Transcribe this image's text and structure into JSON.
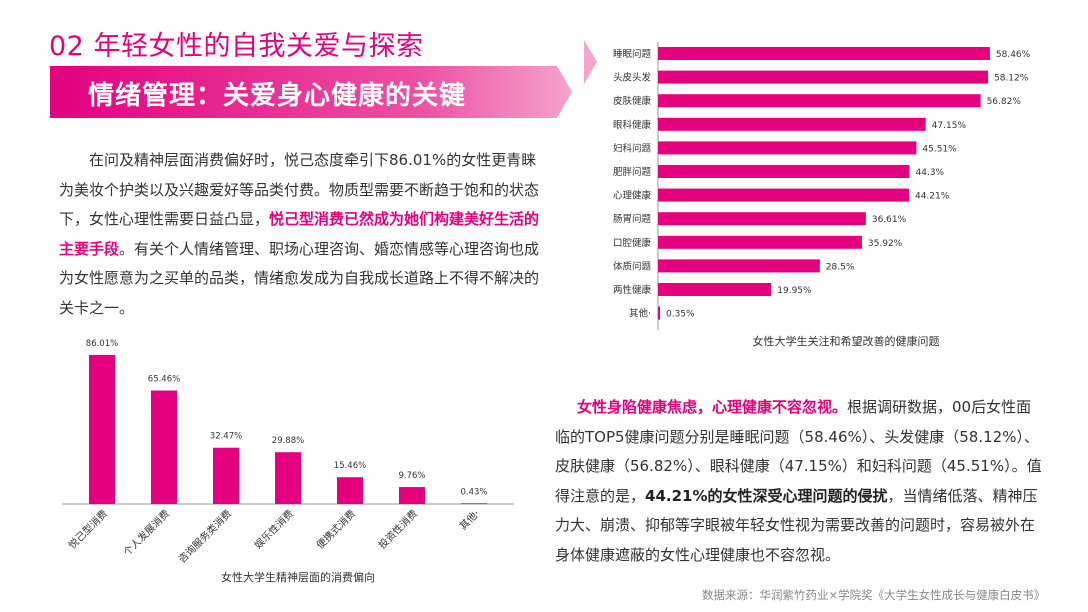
{
  "header": {
    "title": "02 年轻女性的自我关爱与探索",
    "banner": "情绪管理：关爱身心健康的关键"
  },
  "colors": {
    "accent": "#e4007f",
    "banner_light": "#f6a3cd"
  },
  "intro": {
    "p1": "在问及精神层面消费偏好时，悦己态度牵引下86.01%的女性更青睐为美妆个护类以及兴趣爱好等品类付费。物质型需要不断趋于饱和的状态下，女性心理性需要日益凸显，",
    "highlight": "悦己型消费已然成为她们构建美好生活的主要手段",
    "p2": "。有关个人情绪管理、职场心理咨询、婚恋情感等心理咨询也成为女性愿意为之买单的品类，情绪愈发成为自我成长道路上不得不解决的关卡之一。"
  },
  "health_text": {
    "highlight": "女性身陷健康焦虑，心理健康不容忽视。",
    "p1": "根据调研数据，00后女性面临的TOP5健康问题分别是睡眠问题（58.46%）、头发健康（58.12%）、皮肤健康（56.82%）、眼科健康（47.15%）和妇科问题（45.51%）。值得注意的是，",
    "bold": "44.21%的女性深受心理问题的侵扰",
    "p2": "，当情绪低落、精神压力大、崩溃、抑郁等字眼被年轻女性视为需要改善的问题时，容易被外在身体健康遮蔽的女性心理健康也不容忽视。"
  },
  "source": "数据来源：华润紫竹药业×学院奖《大学生女性成长与健康白皮书》",
  "chart_data": [
    {
      "type": "bar",
      "orientation": "horizontal",
      "title": "女性大学生关注和希望改善的健康问题",
      "categories": [
        "睡眠问题",
        "头皮头发",
        "皮肤健康",
        "眼科健康",
        "妇科问题",
        "肥胖问题",
        "心理健康",
        "肠胃问题",
        "口腔健康",
        "体质问题",
        "两性健康",
        "其他·"
      ],
      "values": [
        58.46,
        58.12,
        56.82,
        47.15,
        45.51,
        44.3,
        44.21,
        36.61,
        35.92,
        28.5,
        19.95,
        0.35
      ],
      "labels": [
        "58.46%",
        "58.12%",
        "56.82%",
        "47.15%",
        "45.51%",
        "44.3%",
        "44.21%",
        "36.61%",
        "35.92%",
        "28.5%",
        "19.95%",
        "0.35%"
      ],
      "color": "#e4007f",
      "xlim": [
        0,
        62
      ]
    },
    {
      "type": "bar",
      "orientation": "vertical",
      "title": "女性大学生精神层面的消费偏向",
      "categories": [
        "悦己型消费",
        "个人发展消费",
        "咨询服务类消费",
        "娱乐性消费",
        "便携式消费",
        "投资性消费",
        "其他·"
      ],
      "values": [
        86.01,
        65.46,
        32.47,
        29.88,
        15.46,
        9.76,
        0.43
      ],
      "labels": [
        "86.01%",
        "65.46%",
        "32.47%",
        "29.88%",
        "15.46%",
        "9.76%",
        "0.43%"
      ],
      "color": "#e4007f",
      "ylim": [
        0,
        90
      ]
    }
  ]
}
